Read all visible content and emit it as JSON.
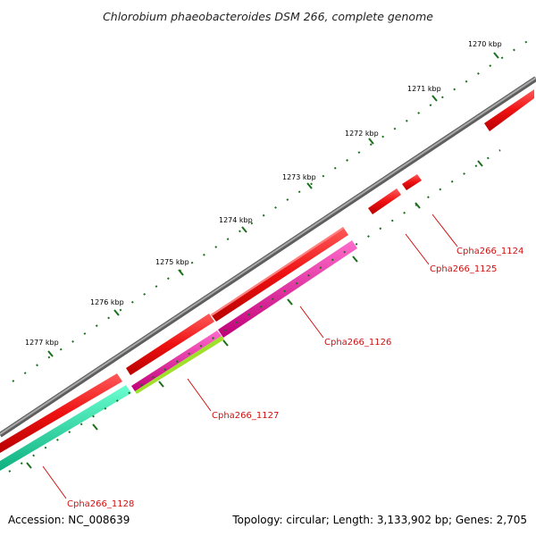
{
  "title": "Chlorobium phaeobacteroides DSM 266, complete genome",
  "footer": {
    "accession": "Accession: NC_008639",
    "summary": "Topology: circular; Length: 3,133,902 bp; Genes: 2,705"
  },
  "colors": {
    "backbone": "#7a7a7a",
    "tick": "#1b6e1b",
    "cds": "#ee1111",
    "gene_magenta": "#e8109a",
    "gene_lime": "#9ee02a",
    "gene_teal": "#18e6a4",
    "label": "#d01010"
  },
  "scale": {
    "ticks": [
      {
        "label": "1270 kbp"
      },
      {
        "label": "1271 kbp"
      },
      {
        "label": "1272 kbp"
      },
      {
        "label": "1273 kbp"
      },
      {
        "label": "1274 kbp"
      },
      {
        "label": "1275 kbp"
      },
      {
        "label": "1276 kbp"
      },
      {
        "label": "1277 kbp"
      }
    ]
  },
  "gene_labels": [
    {
      "text": "Cpha266_1124"
    },
    {
      "text": "Cpha266_1125"
    },
    {
      "text": "Cpha266_1126"
    },
    {
      "text": "Cpha266_1127"
    },
    {
      "text": "Cpha266_1128"
    }
  ]
}
